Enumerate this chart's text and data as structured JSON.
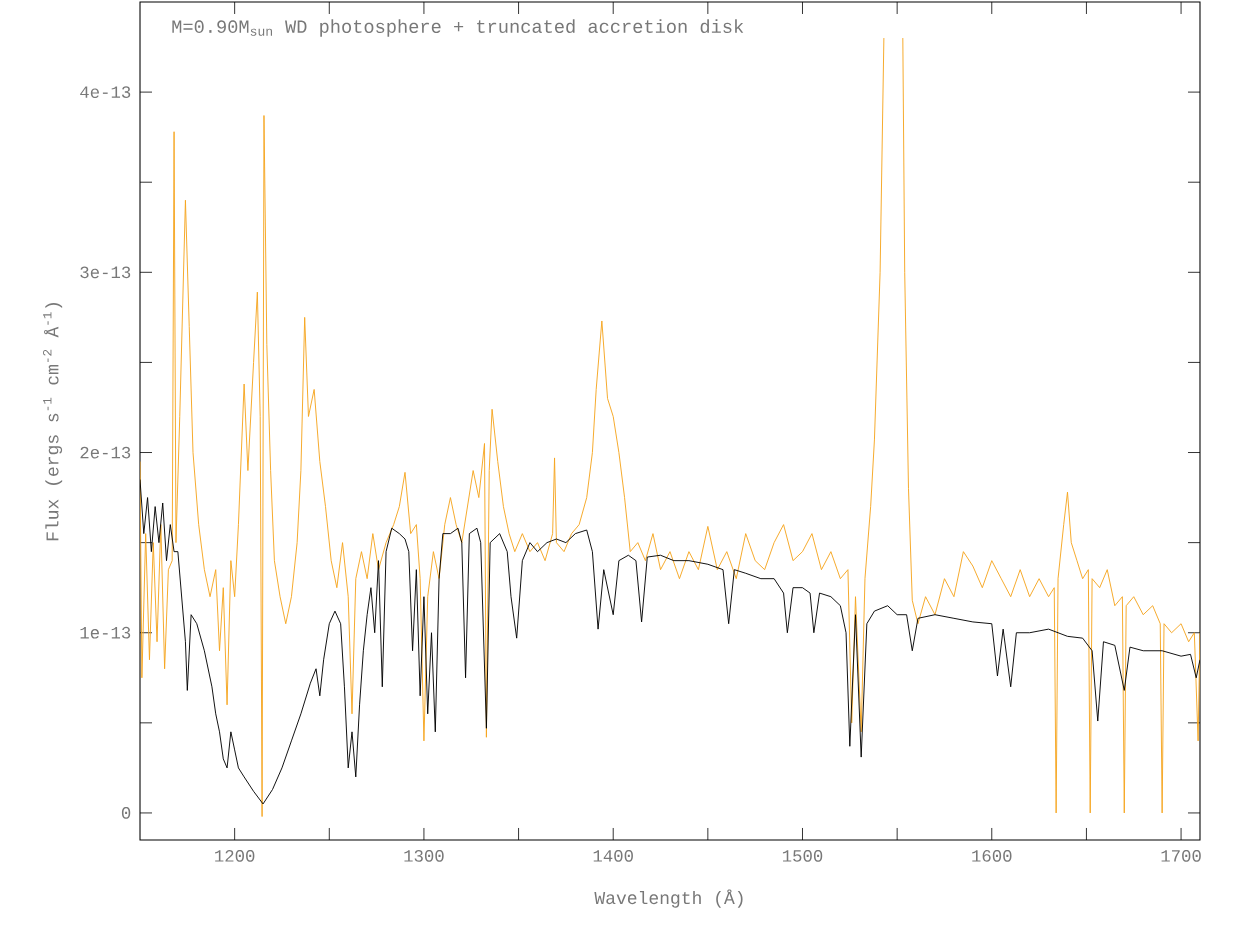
{
  "chart_data": {
    "type": "line",
    "title": "M=0.90M$_{sun}$ WD photosphere + truncated accretion disk",
    "xlabel": "Wavelength (Å)",
    "ylabel": "Flux (ergs s$^{-1}$ cm$^{-2}$ Å$^{-1}$)",
    "xlim": [
      1150,
      1710
    ],
    "ylim": [
      -1.5e-14,
      4.5e-13
    ],
    "xticks": [
      1200,
      {
        "value": 1250,
        "label": null
      },
      1300,
      {
        "value": 1350,
        "label": null
      },
      1400,
      {
        "value": 1450,
        "label": null
      },
      1500,
      {
        "value": 1550,
        "label": null
      },
      1600,
      {
        "value": 1650,
        "label": null
      },
      1700
    ],
    "yticks": [
      {
        "value": 0,
        "label": "0"
      },
      {
        "value": 5e-14,
        "label": null
      },
      {
        "value": 1e-13,
        "label": "1e-13"
      },
      {
        "value": 1.5e-13,
        "label": null
      },
      {
        "value": 2e-13,
        "label": "2e-13"
      },
      {
        "value": 2.5e-13,
        "label": null
      },
      {
        "value": 3e-13,
        "label": "3e-13"
      },
      {
        "value": 3.5e-13,
        "label": null
      },
      {
        "value": 4e-13,
        "label": "4e-13"
      }
    ],
    "marker": "none",
    "series": [
      {
        "color": "#f5a51e",
        "x": [
          1150,
          1151,
          1153,
          1155,
          1157,
          1159,
          1161,
          1163,
          1165,
          1167,
          1168,
          1169,
          1171,
          1174,
          1176,
          1178,
          1181,
          1184,
          1187,
          1190,
          1192,
          1194,
          1196,
          1198,
          1200,
          1202,
          1205,
          1207,
          1210,
          1212,
          1213.5,
          1214.5,
          1215.5,
          1217,
          1219,
          1221,
          1224,
          1227,
          1230,
          1233,
          1235,
          1237,
          1239,
          1242,
          1245,
          1248,
          1251,
          1254,
          1257,
          1260,
          1262,
          1264,
          1267,
          1270,
          1273,
          1276,
          1280,
          1284,
          1287,
          1290,
          1293,
          1296,
          1298,
          1300,
          1302,
          1305,
          1308,
          1311,
          1314,
          1317,
          1320,
          1323,
          1326,
          1329,
          1332,
          1333,
          1334.5,
          1336,
          1339,
          1342,
          1345,
          1348,
          1352,
          1356,
          1360,
          1364,
          1368,
          1369,
          1370,
          1374,
          1378,
          1382,
          1386,
          1389,
          1391,
          1394,
          1397,
          1400,
          1403,
          1406,
          1409,
          1413,
          1417,
          1421,
          1425,
          1430,
          1435,
          1440,
          1445,
          1450,
          1455,
          1460,
          1465,
          1470,
          1475,
          1480,
          1485,
          1490,
          1495,
          1500,
          1505,
          1510,
          1515,
          1520,
          1524,
          1526,
          1528,
          1531,
          1533,
          1536,
          1538,
          1541,
          1543,
          1548,
          1553,
          1554,
          1556,
          1558,
          1561,
          1565,
          1570,
          1575,
          1580,
          1585,
          1590,
          1595,
          1600,
          1605,
          1610,
          1615,
          1620,
          1625,
          1630,
          1633,
          1634,
          1635,
          1638,
          1640,
          1642,
          1645,
          1648,
          1651,
          1652,
          1653,
          1657,
          1661,
          1665,
          1669,
          1670,
          1671,
          1675,
          1680,
          1685,
          1689,
          1690,
          1691,
          1695,
          1700,
          1704,
          1707,
          1709,
          1710
        ],
        "values": [
          1.95e-13,
          7.5e-14,
          1.55e-13,
          8.5e-14,
          1.5e-13,
          9.5e-14,
          1.6e-13,
          8e-14,
          1.35e-13,
          1.4e-13,
          3.78e-13,
          1.5e-13,
          2.2e-13,
          3.4e-13,
          2.7e-13,
          2e-13,
          1.6e-13,
          1.35e-13,
          1.2e-13,
          1.35e-13,
          9e-14,
          1.25e-13,
          6e-14,
          1.4e-13,
          1.2e-13,
          1.6e-13,
          2.38e-13,
          1.9e-13,
          2.5e-13,
          2.89e-13,
          2.2e-13,
          -2e-15,
          3.87e-13,
          2.6e-13,
          1.9e-13,
          1.4e-13,
          1.2e-13,
          1.05e-13,
          1.2e-13,
          1.5e-13,
          1.9e-13,
          2.75e-13,
          2.2e-13,
          2.35e-13,
          1.95e-13,
          1.7e-13,
          1.4e-13,
          1.25e-13,
          1.5e-13,
          1.2e-13,
          5.5e-14,
          1.3e-13,
          1.45e-13,
          1.3e-13,
          1.55e-13,
          1.35e-13,
          1.5e-13,
          1.6e-13,
          1.7e-13,
          1.89e-13,
          1.55e-13,
          1.6e-13,
          1.3e-13,
          4e-14,
          1.2e-13,
          1.45e-13,
          1.3e-13,
          1.6e-13,
          1.75e-13,
          1.6e-13,
          1.5e-13,
          1.7e-13,
          1.9e-13,
          1.75e-13,
          2.05e-13,
          4.2e-14,
          1.9e-13,
          2.24e-13,
          1.95e-13,
          1.7e-13,
          1.55e-13,
          1.45e-13,
          1.55e-13,
          1.45e-13,
          1.5e-13,
          1.4e-13,
          1.55e-13,
          1.97e-13,
          1.5e-13,
          1.45e-13,
          1.55e-13,
          1.6e-13,
          1.75e-13,
          2e-13,
          2.35e-13,
          2.73e-13,
          2.3e-13,
          2.2e-13,
          2e-13,
          1.75e-13,
          1.45e-13,
          1.5e-13,
          1.4e-13,
          1.55e-13,
          1.35e-13,
          1.45e-13,
          1.3e-13,
          1.45e-13,
          1.35e-13,
          1.59e-13,
          1.35e-13,
          1.45e-13,
          1.3e-13,
          1.55e-13,
          1.4e-13,
          1.35e-13,
          1.5e-13,
          1.6e-13,
          1.4e-13,
          1.45e-13,
          1.55e-13,
          1.35e-13,
          1.45e-13,
          1.3e-13,
          1.35e-13,
          5e-14,
          1.2e-13,
          4.5e-14,
          1.3e-13,
          1.7e-13,
          2.07e-13,
          3e-13,
          4.3e-13,
          null,
          4.3e-13,
          3e-13,
          1.8e-13,
          1.18e-13,
          1.05e-13,
          1.2e-13,
          1.1e-13,
          1.3e-13,
          1.2e-13,
          1.45e-13,
          1.37e-13,
          1.25e-13,
          1.4e-13,
          1.3e-13,
          1.2e-13,
          1.35e-13,
          1.2e-13,
          1.3e-13,
          1.2e-13,
          1.25e-13,
          0,
          1.3e-13,
          1.6e-13,
          1.78e-13,
          1.5e-13,
          1.4e-13,
          1.3e-13,
          1.35e-13,
          0,
          1.3e-13,
          1.25e-13,
          1.35e-13,
          1.15e-13,
          1.2e-13,
          0,
          1.15e-13,
          1.2e-13,
          1.1e-13,
          1.15e-13,
          1.05e-13,
          0,
          1.05e-13,
          1e-13,
          1.05e-13,
          9.5e-14,
          1e-13,
          4e-14,
          1e-13
        ]
      },
      {
        "color": "#000000",
        "x": [
          1150,
          1152,
          1154,
          1156,
          1158,
          1160,
          1162,
          1164,
          1166,
          1168,
          1170,
          1172,
          1174,
          1175,
          1177,
          1180,
          1184,
          1188,
          1190,
          1192,
          1194,
          1196,
          1198,
          1200,
          1202,
          1205,
          1210,
          1215,
          1220,
          1225,
          1230,
          1235,
          1240,
          1243,
          1245,
          1247,
          1250,
          1253,
          1256,
          1258,
          1260,
          1262,
          1264,
          1266,
          1268,
          1270,
          1272,
          1274,
          1276,
          1278,
          1280,
          1283,
          1287,
          1290,
          1292,
          1294,
          1296,
          1298,
          1300,
          1302,
          1304,
          1306,
          1308,
          1310,
          1314,
          1318,
          1320,
          1322,
          1324,
          1328,
          1330,
          1333,
          1335,
          1340,
          1344,
          1346,
          1349,
          1352,
          1356,
          1360,
          1365,
          1370,
          1375,
          1380,
          1386,
          1389,
          1392,
          1395,
          1400,
          1403,
          1408,
          1412,
          1415,
          1418,
          1425,
          1432,
          1440,
          1450,
          1458,
          1461,
          1464,
          1470,
          1478,
          1485,
          1490,
          1492,
          1495,
          1500,
          1504,
          1506,
          1509,
          1515,
          1520,
          1523,
          1525,
          1528,
          1531,
          1534,
          1538,
          1545,
          1550,
          1555,
          1558,
          1561,
          1570,
          1580,
          1590,
          1600,
          1603,
          1606,
          1610,
          1613,
          1620,
          1630,
          1640,
          1648,
          1653,
          1656,
          1659,
          1665,
          1670,
          1673,
          1680,
          1690,
          1700,
          1705,
          1708,
          1710
        ],
        "values": [
          1.85e-13,
          1.55e-13,
          1.75e-13,
          1.45e-13,
          1.7e-13,
          1.5e-13,
          1.72e-13,
          1.4e-13,
          1.6e-13,
          1.45e-13,
          1.45e-13,
          1.2e-13,
          9.5e-14,
          6.8e-14,
          1.1e-13,
          1.05e-13,
          9e-14,
          7e-14,
          5.5e-14,
          4.5e-14,
          3e-14,
          2.5e-14,
          4.5e-14,
          3.5e-14,
          2.5e-14,
          2e-14,
          1.2e-14,
          5e-15,
          1.3e-14,
          2.5e-14,
          4e-14,
          5.5e-14,
          7.2e-14,
          8e-14,
          6.5e-14,
          8.5e-14,
          1.05e-13,
          1.12e-13,
          1.05e-13,
          7e-14,
          2.5e-14,
          4.5e-14,
          2e-14,
          6e-14,
          9e-14,
          1.1e-13,
          1.25e-13,
          1e-13,
          1.4e-13,
          7e-14,
          1.45e-13,
          1.58e-13,
          1.55e-13,
          1.52e-13,
          1.45e-13,
          9e-14,
          1.35e-13,
          6.5e-14,
          1.2e-13,
          5.5e-14,
          1e-13,
          4.5e-14,
          1.3e-13,
          1.55e-13,
          1.55e-13,
          1.58e-13,
          1.5e-13,
          7.5e-14,
          1.55e-13,
          1.58e-13,
          1.5e-13,
          4.7e-14,
          1.5e-13,
          1.55e-13,
          1.45e-13,
          1.2e-13,
          9.7e-14,
          1.4e-13,
          1.5e-13,
          1.45e-13,
          1.5e-13,
          1.52e-13,
          1.5e-13,
          1.55e-13,
          1.57e-13,
          1.45e-13,
          1.02e-13,
          1.35e-13,
          1.1e-13,
          1.4e-13,
          1.43e-13,
          1.4e-13,
          1.06e-13,
          1.42e-13,
          1.43e-13,
          1.4e-13,
          1.4e-13,
          1.38e-13,
          1.35e-13,
          1.05e-13,
          1.35e-13,
          1.33e-13,
          1.3e-13,
          1.3e-13,
          1.22e-13,
          1e-13,
          1.25e-13,
          1.25e-13,
          1.22e-13,
          1e-13,
          1.22e-13,
          1.2e-13,
          1.15e-13,
          1e-13,
          3.7e-14,
          1.1e-13,
          3.1e-14,
          1.05e-13,
          1.12e-13,
          1.15e-13,
          1.1e-13,
          1.1e-13,
          9e-14,
          1.08e-13,
          1.1e-13,
          1.08e-13,
          1.06e-13,
          1.05e-13,
          7.6e-14,
          1.02e-13,
          7e-14,
          1e-13,
          1e-13,
          1.02e-13,
          9.8e-14,
          9.7e-14,
          9e-14,
          5.1e-14,
          9.5e-14,
          9.3e-14,
          6.8e-14,
          9.2e-14,
          9e-14,
          9e-14,
          8.7e-14,
          8.8e-14,
          7.5e-14,
          8.5e-14
        ]
      }
    ]
  }
}
